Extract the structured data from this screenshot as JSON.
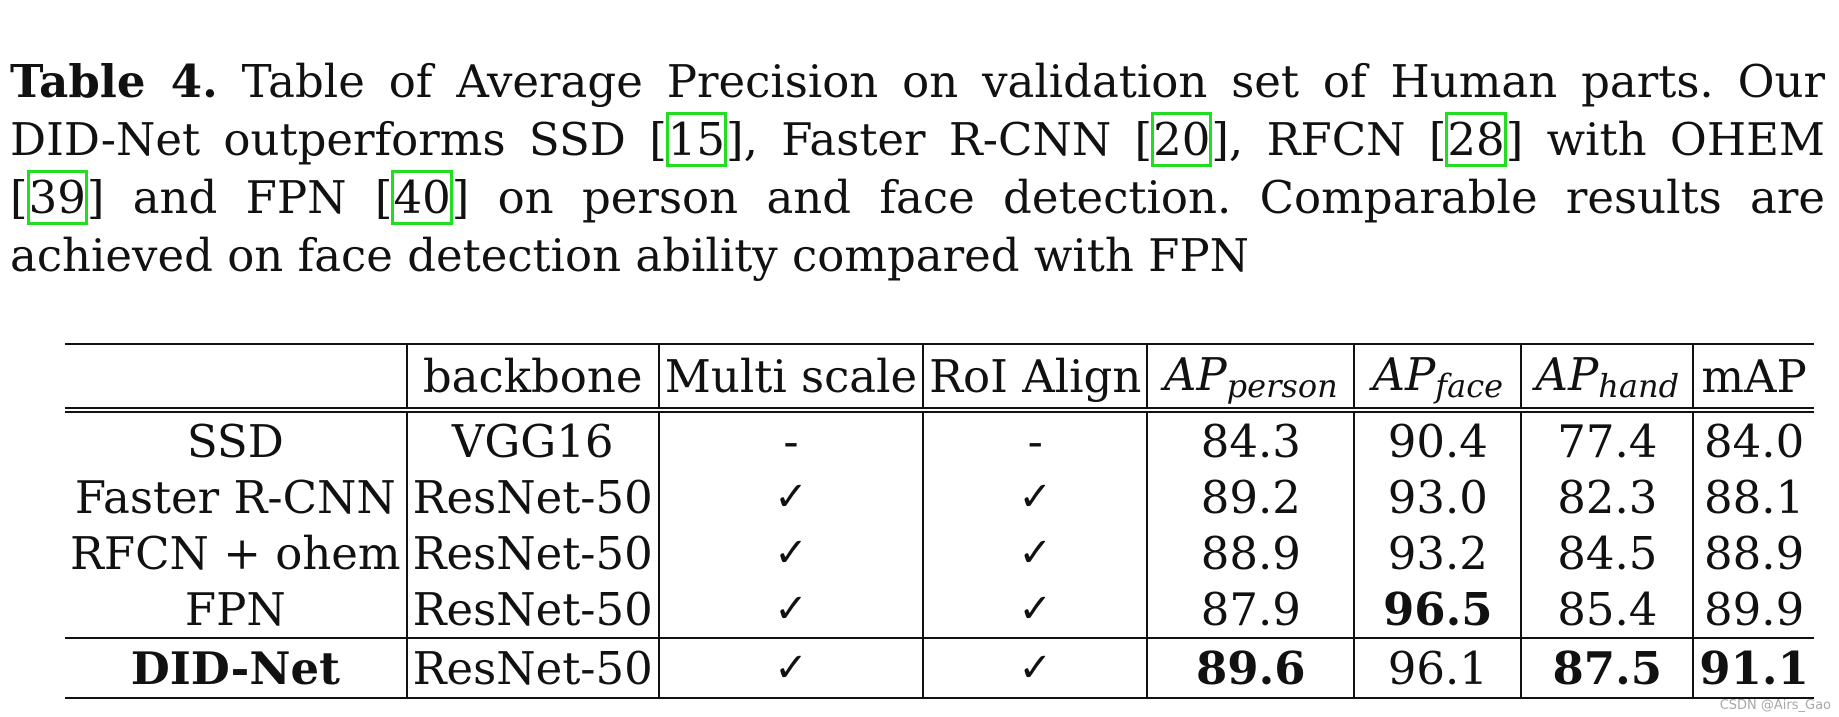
{
  "caption": {
    "label": "Table 4.",
    "part1": "Table of Average Precision on validation set of Human parts. Our DID-Net outperforms SSD [",
    "ref1": "15",
    "part2": "], Faster R-CNN [",
    "ref2": "20",
    "part3": "], RFCN [",
    "ref3": "28",
    "part4": "] with OHEM [",
    "ref4": "39",
    "part5": "] and FPN [",
    "ref5": "40",
    "part6": "] on person and face detection. Comparable results are achieved on face detection ability compared with FPN"
  },
  "table": {
    "headers": {
      "method": "",
      "backbone": "backbone",
      "multi_scale": "Multi scale",
      "roi_align": "RoI Align",
      "ap_person": {
        "main": "AP",
        "sub": "person"
      },
      "ap_face": {
        "main": "AP",
        "sub": "face"
      },
      "ap_hand": {
        "main": "AP",
        "sub": "hand"
      },
      "map": "mAP"
    },
    "rows": [
      {
        "method": "SSD",
        "backbone": "VGG16",
        "multi_scale": "-",
        "roi_align": "-",
        "ap_person": "84.3",
        "ap_face": "90.4",
        "ap_hand": "77.4",
        "map": "84.0"
      },
      {
        "method": "Faster R-CNN",
        "backbone": "ResNet-50",
        "multi_scale": "✓",
        "roi_align": "✓",
        "ap_person": "89.2",
        "ap_face": "93.0",
        "ap_hand": "82.3",
        "map": "88.1"
      },
      {
        "method": "RFCN + ohem",
        "backbone": "ResNet-50",
        "multi_scale": "✓",
        "roi_align": "✓",
        "ap_person": "88.9",
        "ap_face": "93.2",
        "ap_hand": "84.5",
        "map": "88.9"
      },
      {
        "method": "FPN",
        "backbone": "ResNet-50",
        "multi_scale": "✓",
        "roi_align": "✓",
        "ap_person": "87.9",
        "ap_face": "96.5",
        "ap_hand": "85.4",
        "map": "89.9"
      },
      {
        "method": "DID-Net",
        "backbone": "ResNet-50",
        "multi_scale": "✓",
        "roi_align": "✓",
        "ap_person": "89.6",
        "ap_face": "96.1",
        "ap_hand": "87.5",
        "map": "91.1"
      }
    ]
  },
  "watermark": "CSDN @Airs_Gao"
}
